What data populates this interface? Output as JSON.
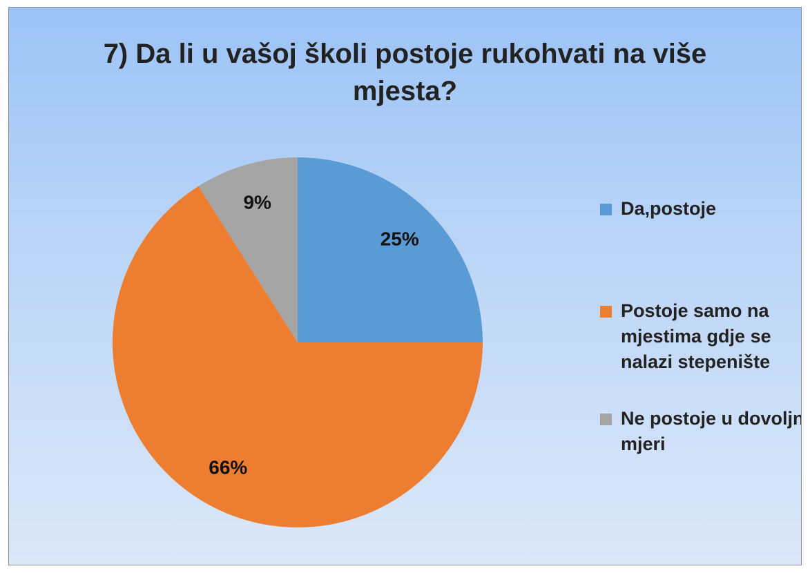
{
  "chart_data": {
    "type": "pie",
    "title": "7) Da li u vašoj školi postoje rukohvati na više mjesta?",
    "categories": [
      "Da,postoje",
      "Postoje samo na mjestima gdje se nalazi stepenište",
      "Ne postoje u dovoljnoj mjeri"
    ],
    "values": [
      25,
      66,
      9
    ],
    "value_labels": [
      "25%",
      "66%",
      "9%"
    ],
    "colors": [
      "#5b9bd5",
      "#ed7d31",
      "#a5a5a5"
    ],
    "legend": "right"
  }
}
